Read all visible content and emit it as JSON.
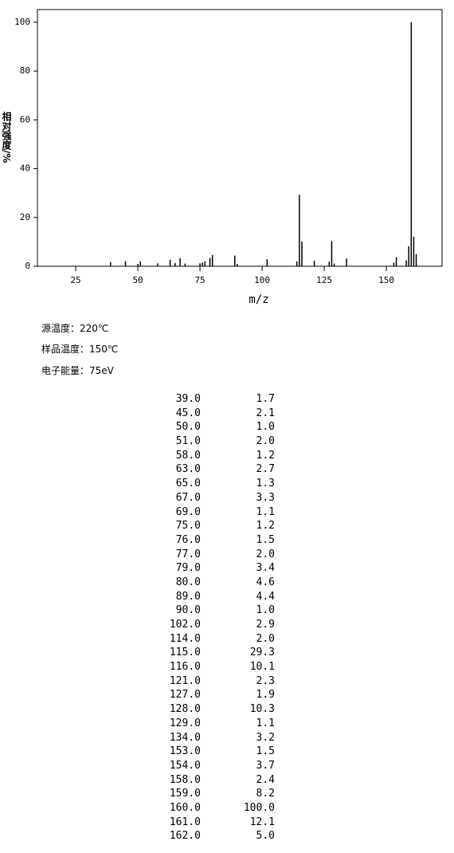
{
  "chart_data": {
    "type": "bar",
    "x_label": "m/z",
    "y_label": "相对强度/%",
    "x": [
      39,
      45,
      50,
      51,
      58,
      63,
      65,
      67,
      69,
      75,
      76,
      77,
      79,
      80,
      89,
      90,
      102,
      114,
      115,
      116,
      121,
      127,
      128,
      129,
      134,
      153,
      154,
      158,
      159,
      160,
      161,
      162
    ],
    "values": [
      1.7,
      2.1,
      1.0,
      2.0,
      1.2,
      2.7,
      1.3,
      3.3,
      1.1,
      1.2,
      1.5,
      2.0,
      3.4,
      4.6,
      4.4,
      1.0,
      2.9,
      2.0,
      29.3,
      10.1,
      2.3,
      1.9,
      10.3,
      1.1,
      3.2,
      1.5,
      3.7,
      2.4,
      8.2,
      100.0,
      12.1,
      5.0
    ],
    "color": "#000000",
    "xlim": [
      9.6,
      172.4
    ],
    "xticks": [
      25,
      50,
      75,
      100,
      125,
      150
    ],
    "ylim": [
      0,
      105.2
    ],
    "yticks": [
      0,
      20,
      40,
      60,
      80,
      100
    ]
  },
  "info": [
    "源温度：220℃",
    "样品温度：150℃",
    "电子能量：75eV"
  ],
  "table": {
    "rows": [
      [
        "39.0",
        "1.7"
      ],
      [
        "45.0",
        "2.1"
      ],
      [
        "50.0",
        "1.0"
      ],
      [
        "51.0",
        "2.0"
      ],
      [
        "58.0",
        "1.2"
      ],
      [
        "63.0",
        "2.7"
      ],
      [
        "65.0",
        "1.3"
      ],
      [
        "67.0",
        "3.3"
      ],
      [
        "69.0",
        "1.1"
      ],
      [
        "75.0",
        "1.2"
      ],
      [
        "76.0",
        "1.5"
      ],
      [
        "77.0",
        "2.0"
      ],
      [
        "79.0",
        "3.4"
      ],
      [
        "80.0",
        "4.6"
      ],
      [
        "89.0",
        "4.4"
      ],
      [
        "90.0",
        "1.0"
      ],
      [
        "102.0",
        "2.9"
      ],
      [
        "114.0",
        "2.0"
      ],
      [
        "115.0",
        "29.3"
      ],
      [
        "116.0",
        "10.1"
      ],
      [
        "121.0",
        "2.3"
      ],
      [
        "127.0",
        "1.9"
      ],
      [
        "128.0",
        "10.3"
      ],
      [
        "129.0",
        "1.1"
      ],
      [
        "134.0",
        "3.2"
      ],
      [
        "153.0",
        "1.5"
      ],
      [
        "154.0",
        "3.7"
      ],
      [
        "158.0",
        "2.4"
      ],
      [
        "159.0",
        "8.2"
      ],
      [
        "160.0",
        "100.0"
      ],
      [
        "161.0",
        "12.1"
      ],
      [
        "162.0",
        "5.0"
      ]
    ]
  }
}
